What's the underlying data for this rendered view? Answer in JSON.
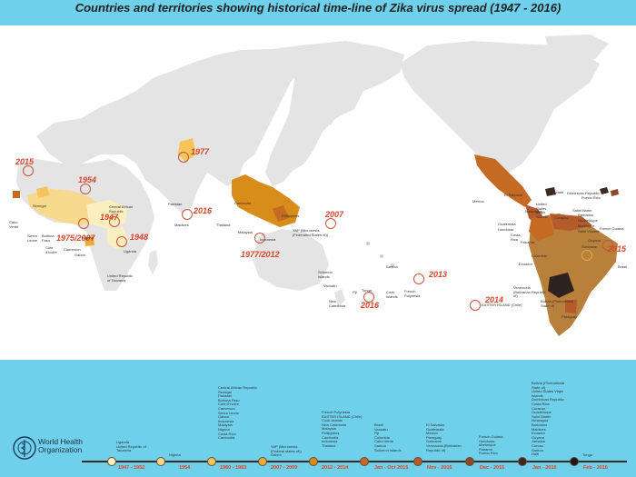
{
  "title": "Countries and territories showing historical time-line of Zika virus spread (1947 - 2016)",
  "colors": {
    "band": "#6fd0ec",
    "land": "#e4e4e4",
    "c1947": "#fbeebf",
    "c1954": "#f6d98c",
    "c1960": "#f4c55a",
    "c2007": "#ecac3a",
    "c2012": "#d88c1a",
    "c2014": "#c46a22",
    "c2015a": "#b55b2b",
    "c2015b": "#a8572c",
    "c2015c": "#8a4a2a",
    "c2016": "#2e2220",
    "marker": "#d9442a"
  },
  "map": {
    "years": {
      "y2015w": "2015",
      "y1954": "1954",
      "y1947": "1947",
      "y1948": "1948",
      "y1975": "1975/2007",
      "y1977": "1977",
      "y2016i": "2016",
      "y19772012": "1977/2012",
      "y2007": "2007",
      "y2013": "2013",
      "y2016p": "2016",
      "y2014": "2014",
      "y2015b": "2015"
    },
    "labels": {
      "cabo": "Cabo Verde",
      "senegal": "Senegal",
      "sierra": "Sierra Leone",
      "burkina": "Burkina Faso",
      "cote": "Côte d'Ivoire",
      "nigeria": "Nigeria",
      "car": "Central African Republic",
      "cameroon": "Cameroon",
      "gabon": "Gabon",
      "uganda": "Uganda",
      "tanzania": "United Republic of Tanzania",
      "pakistan": "Pakistan",
      "maldives": "Maldives",
      "thailand": "Thailand",
      "cambodia": "Cambodia",
      "malaysia": "Malaysia",
      "indonesia": "Indonesia",
      "philippines": "Philippines",
      "yap": "YAP (Micronesia (Federated States of))",
      "solomon": "Solomon Islands",
      "vanuatu": "Vanuatu",
      "newcal": "New Caledonia",
      "fiji": "Fiji",
      "samoa": "Samoa",
      "tonga": "Tonga",
      "cook": "Cook Islands",
      "fpoly": "French Polynesia",
      "easter": "EASTER ISLAND (Chile)",
      "mexico": "Mexico",
      "elsal": "El Salvador",
      "guatemala": "Guatemala",
      "honduras": "Honduras",
      "nicaragua": "Nicaragua",
      "costarica": "Costa Rica",
      "panama": "Panama",
      "colombia": "Colombia",
      "ecuador": "Ecuador",
      "venezuela": "Venezuela (Bolivarian Republic of)",
      "bolivia": "Bolivia (Plurinational State of)",
      "paraguay": "Paraguay",
      "brazil": "Brasil",
      "haiti": "Haiti",
      "domrep": "Dominican Republic",
      "puerto": "Puerto Rico",
      "stmartin": "Saint Martin",
      "barbados": "Barbados",
      "guadeloupe": "Guadeloupe",
      "martinique": "Martinique",
      "stvincent": "Saint Vincent",
      "curacao": "Curaçao",
      "guyana": "Guyana",
      "fguiana": "French Guiana",
      "suriname": "Suriname",
      "usvi": "United States Virgin Islands"
    }
  },
  "timeline": {
    "who_name": "World Health Organization",
    "periods": [
      {
        "label": "1947 - 1952",
        "color": "#fbeebf",
        "items": "Uganda\nUnited Republic of\nTanzania"
      },
      {
        "label": "1954",
        "color": "#f6d98c",
        "items": "Nigeria"
      },
      {
        "label": "1960 - 1983",
        "color": "#f4c55a",
        "items": "Central African Republic\nSenegal\nPakistan\nBurkina Faso\nCote D'Ivoire\nCameroon\nSierra Leone\nGabon\nIndonesia\nMalaysia\nNigeria\nCosta Rica\nCambodia"
      },
      {
        "label": "2007 - 2009",
        "color": "#ecac3a",
        "items": "YAP (Micronesia\n(Federal states of))\nGabon"
      },
      {
        "label": "2012 - 2014",
        "color": "#d88c1a",
        "items": "French Polynesia\nEASTER ISLAND (Chile)\nCook Islands\nNew Caledonia\nMalaysia\nPhilippines\nCambodia\nIndonesia\nThailand"
      },
      {
        "label": "Jan - Oct 2015",
        "color": "#c46a22",
        "items": "Brazil\nVanuatu\nFiji\nColombia\nCabo Verde\nSamoa\nSolomon Islands"
      },
      {
        "label": "Nov - 2015",
        "color": "#b55b2b",
        "items": "El Salvador\nGuatemala\nMexico\nParaguay\nSuriname\nVenezuela (Bolivarian\nRepublic of)"
      },
      {
        "label": "Dec - 2015",
        "color": "#8a4a2a",
        "items": "French Guiana\nHonduras\nMartinique\nPanama\nPuerto Rico"
      },
      {
        "label": "Jan - 2016",
        "color": "#3a2a22",
        "items": "Bolivia (Plurinational\nState of)\nUnited States Virgin\nIslands\nDominican Republic\nCosta Rica\nCuracao\nGuadeloupe\nSaint Martin\nNicaragua\nBarbados\nMaldives\nEcuador\nGuyana\nJamaica\nCurcao\nSamoa\nHaiti"
      },
      {
        "label": "Feb - 2016",
        "color": "#1e1a1a",
        "items": "Tonga"
      }
    ]
  }
}
